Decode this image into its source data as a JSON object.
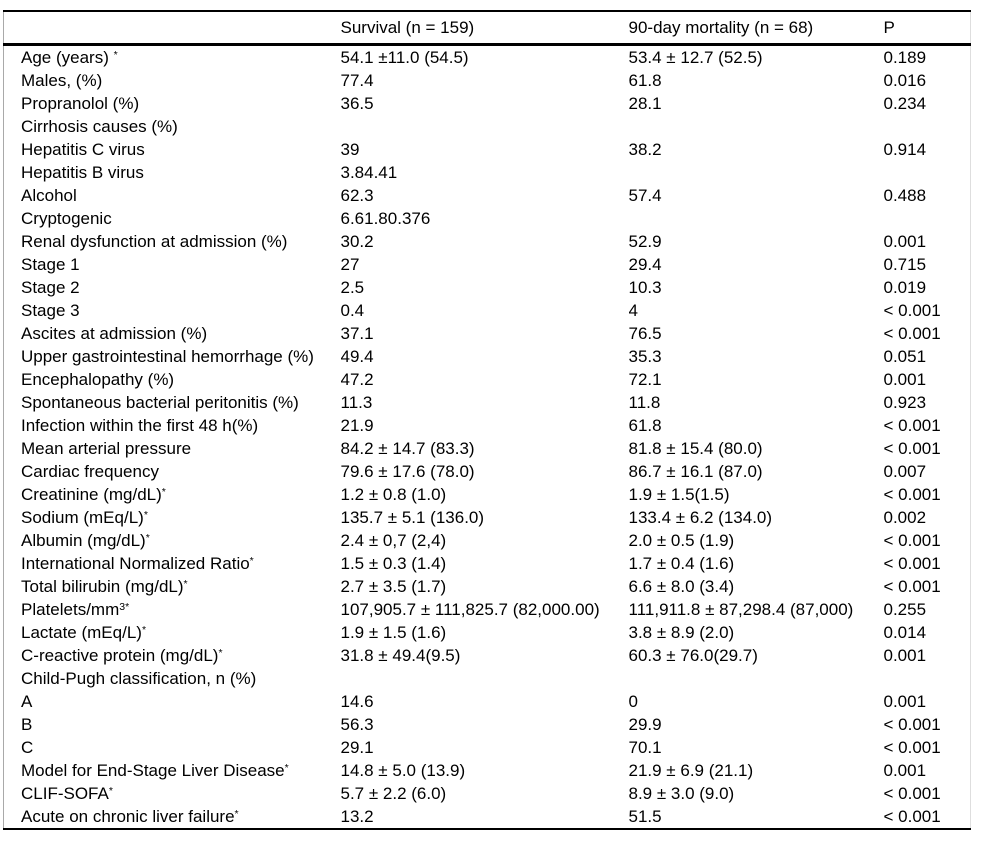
{
  "colors": {
    "background": "#ffffff",
    "text": "#000000",
    "rule": "#000000"
  },
  "table": {
    "columns": [
      "",
      "Survival (n = 159)",
      "90-day mortality (n = 68)",
      "P"
    ],
    "rows": [
      {
        "label": "Age (years) ",
        "sup": "*",
        "survival": "54.1 ±11.0 (54.5)",
        "mortality": "53.4 ± 12.7 (52.5)",
        "p": "0.189"
      },
      {
        "label": "Males, (%)",
        "sup": "",
        "survival": "77.4",
        "mortality": "61.8",
        "p": "0.016"
      },
      {
        "label": "Propranolol (%)",
        "sup": "",
        "survival": "36.5",
        "mortality": "28.1",
        "p": "0.234"
      },
      {
        "label": "Cirrhosis causes (%)",
        "sup": "",
        "survival": "",
        "mortality": "",
        "p": ""
      },
      {
        "label": "Hepatitis C virus",
        "sup": "",
        "survival": "39",
        "mortality": "38.2",
        "p": "0.914"
      },
      {
        "label": "Hepatitis B virus",
        "sup": "",
        "survival": "3.84.41",
        "mortality": "",
        "p": ""
      },
      {
        "label": "Alcohol",
        "sup": "",
        "survival": "62.3",
        "mortality": "57.4",
        "p": "0.488"
      },
      {
        "label": "Cryptogenic",
        "sup": "",
        "survival": "6.61.80.376",
        "mortality": "",
        "p": ""
      },
      {
        "label": "Renal dysfunction at admission (%)",
        "sup": "",
        "survival": "30.2",
        "mortality": "52.9",
        "p": "0.001"
      },
      {
        "label": "Stage 1",
        "sup": "",
        "survival": "27",
        "mortality": "29.4",
        "p": "0.715"
      },
      {
        "label": "Stage 2",
        "sup": "",
        "survival": "2.5",
        "mortality": "10.3",
        "p": "0.019"
      },
      {
        "label": "Stage 3",
        "sup": "",
        "survival": "0.4",
        "mortality": "4",
        "p": "< 0.001"
      },
      {
        "label": "Ascites at admission (%)",
        "sup": "",
        "survival": "37.1",
        "mortality": "76.5",
        "p": "< 0.001"
      },
      {
        "label": "Upper gastrointestinal hemorrhage (%)",
        "sup": "",
        "survival": "49.4",
        "mortality": "35.3",
        "p": "0.051"
      },
      {
        "label": "Encephalopathy (%)",
        "sup": "",
        "survival": "47.2",
        "mortality": "72.1",
        "p": "0.001"
      },
      {
        "label": "Spontaneous bacterial peritonitis (%)",
        "sup": "",
        "survival": "11.3",
        "mortality": "11.8",
        "p": "0.923"
      },
      {
        "label": "Infection within the first 48 h(%)",
        "sup": "",
        "survival": "21.9",
        "mortality": "61.8",
        "p": "< 0.001"
      },
      {
        "label": "Mean arterial pressure",
        "sup": "",
        "survival": "84.2 ± 14.7 (83.3)",
        "mortality": "81.8 ± 15.4 (80.0)",
        "p": "< 0.001"
      },
      {
        "label": "Cardiac frequency",
        "sup": "",
        "survival": "79.6 ± 17.6 (78.0)",
        "mortality": "86.7 ± 16.1 (87.0)",
        "p": "0.007"
      },
      {
        "label": "Creatinine (mg/dL)",
        "sup": "*",
        "survival": "1.2 ± 0.8 (1.0)",
        "mortality": "1.9 ± 1.5(1.5)",
        "p": "< 0.001"
      },
      {
        "label": "Sodium (mEq/L)",
        "sup": "*",
        "survival": "135.7 ± 5.1 (136.0)",
        "mortality": "133.4 ± 6.2 (134.0)",
        "p": "0.002"
      },
      {
        "label": "Albumin (mg/dL)",
        "sup": "*",
        "survival": "2.4 ± 0,7 (2,4)",
        "mortality": "2.0 ± 0.5 (1.9)",
        "p": "< 0.001"
      },
      {
        "label": "International Normalized Ratio",
        "sup": "*",
        "survival": "1.5 ± 0.3 (1.4)",
        "mortality": "1.7 ± 0.4 (1.6)",
        "p": "< 0.001"
      },
      {
        "label": "Total bilirubin (mg/dL)",
        "sup": "*",
        "survival": "2.7 ± 3.5 (1.7)",
        "mortality": "6.6 ± 8.0 (3.4)",
        "p": "< 0.001"
      },
      {
        "label": "Platelets/mm",
        "sup": "3*",
        "survival": "107,905.7 ± 111,825.7 (82,000.00)",
        "mortality": "111,911.8 ± 87,298.4 (87,000)",
        "p": "0.255"
      },
      {
        "label": "Lactate (mEq/L)",
        "sup": "*",
        "survival": "1.9 ± 1.5 (1.6)",
        "mortality": "3.8 ± 8.9 (2.0)",
        "p": "0.014"
      },
      {
        "label": "C-reactive protein (mg/dL)",
        "sup": "*",
        "survival": "31.8 ± 49.4(9.5)",
        "mortality": "60.3 ± 76.0(29.7)",
        "p": "0.001"
      },
      {
        "label": "Child-Pugh classification, n (%)",
        "sup": "",
        "survival": "",
        "mortality": "",
        "p": ""
      },
      {
        "label": "A",
        "sup": "",
        "survival": "14.6",
        "mortality": "0",
        "p": "0.001"
      },
      {
        "label": "B",
        "sup": "",
        "survival": "56.3",
        "mortality": "29.9",
        "p": "< 0.001"
      },
      {
        "label": "C",
        "sup": "",
        "survival": "29.1",
        "mortality": "70.1",
        "p": "< 0.001"
      },
      {
        "label": "Model for End-Stage Liver Disease",
        "sup": "*",
        "survival": "14.8 ± 5.0 (13.9)",
        "mortality": "21.9 ± 6.9 (21.1)",
        "p": "0.001"
      },
      {
        "label": "CLIF-SOFA",
        "sup": "*",
        "survival": "5.7 ± 2.2 (6.0)",
        "mortality": "8.9 ± 3.0 (9.0)",
        "p": "< 0.001"
      },
      {
        "label": "Acute on chronic liver failure",
        "sup": "*",
        "survival": "13.2",
        "mortality": "51.5",
        "p": "< 0.001"
      }
    ]
  }
}
